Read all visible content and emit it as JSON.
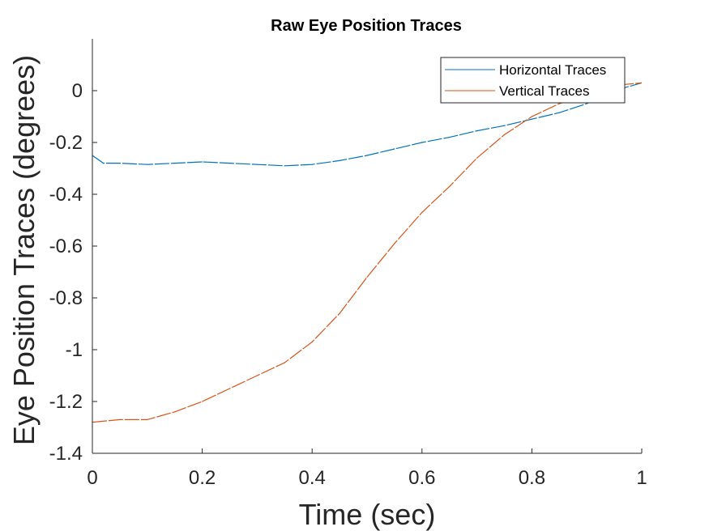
{
  "chart_data": {
    "type": "line",
    "title": "Raw Eye Position Traces",
    "xlabel": "Time (sec)",
    "ylabel": "Eye Position Traces (degrees)",
    "xlim": [
      0,
      1
    ],
    "ylim": [
      -1.4,
      0.2
    ],
    "xticks": [
      "0",
      "0.2",
      "0.4",
      "0.6",
      "0.8",
      "1"
    ],
    "yticks": [
      "0",
      "-0.2",
      "-0.4",
      "-0.6",
      "-0.8",
      "-1",
      "-1.2",
      "-1.4"
    ],
    "grid": false,
    "legend_position": "top-right",
    "series": [
      {
        "name": "Horizontal Traces",
        "color": "#0072BD",
        "x": [
          0,
          0.02,
          0.05,
          0.1,
          0.15,
          0.2,
          0.25,
          0.3,
          0.35,
          0.4,
          0.45,
          0.5,
          0.55,
          0.6,
          0.65,
          0.7,
          0.75,
          0.8,
          0.85,
          0.9,
          0.95,
          1.0
        ],
        "y": [
          -0.25,
          -0.28,
          -0.28,
          -0.285,
          -0.28,
          -0.275,
          -0.28,
          -0.285,
          -0.29,
          -0.285,
          -0.27,
          -0.25,
          -0.225,
          -0.2,
          -0.18,
          -0.155,
          -0.135,
          -0.11,
          -0.085,
          -0.05,
          0.0,
          0.03
        ]
      },
      {
        "name": "Vertical Traces",
        "color": "#D95319",
        "x": [
          0,
          0.05,
          0.1,
          0.15,
          0.2,
          0.25,
          0.3,
          0.35,
          0.4,
          0.45,
          0.5,
          0.55,
          0.6,
          0.65,
          0.7,
          0.75,
          0.8,
          0.85,
          0.9,
          0.95,
          1.0
        ],
        "y": [
          -1.28,
          -1.27,
          -1.27,
          -1.24,
          -1.2,
          -1.15,
          -1.1,
          -1.05,
          -0.97,
          -0.86,
          -0.72,
          -0.59,
          -0.47,
          -0.37,
          -0.26,
          -0.17,
          -0.1,
          -0.05,
          -0.02,
          0.02,
          0.03
        ]
      }
    ]
  }
}
